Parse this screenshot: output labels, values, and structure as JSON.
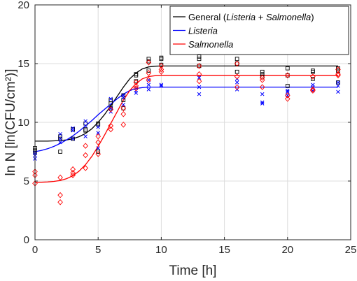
{
  "chart_data": {
    "type": "scatter",
    "xlabel": "Time [h]",
    "ylabel": "ln N [ln(CFU/cm²)]",
    "xlim": [
      0,
      25
    ],
    "ylim": [
      0,
      20
    ],
    "xticks": [
      0,
      5,
      10,
      15,
      20,
      25
    ],
    "yticks": [
      0,
      5,
      10,
      15,
      20
    ],
    "grid": true,
    "legend_position": "top-right",
    "legend": [
      {
        "parts": [
          {
            "text": "General (",
            "italic": false
          },
          {
            "text": "Listeria",
            "italic": true
          },
          {
            "text": " + ",
            "italic": false
          },
          {
            "text": "Salmonella",
            "italic": true
          },
          {
            "text": ")",
            "italic": false
          }
        ],
        "color": "#000000"
      },
      {
        "parts": [
          {
            "text": "Listeria",
            "italic": true
          }
        ],
        "color": "#0000ff"
      },
      {
        "parts": [
          {
            "text": "Salmonella",
            "italic": true
          }
        ],
        "color": "#ff0000"
      }
    ],
    "curves": [
      {
        "series": "General",
        "color": "#000000",
        "x": [
          0,
          0.5,
          1,
          1.5,
          2,
          2.5,
          3,
          3.5,
          4,
          4.5,
          5,
          5.5,
          6,
          6.5,
          7,
          7.5,
          8,
          8.5,
          9,
          9.5,
          10,
          11,
          12,
          14,
          16,
          18,
          20,
          22,
          24
        ],
        "y": [
          8.4,
          8.4,
          8.4,
          8.42,
          8.45,
          8.5,
          8.6,
          8.78,
          9.05,
          9.45,
          10.0,
          10.65,
          11.4,
          12.2,
          13.0,
          13.7,
          14.2,
          14.55,
          14.72,
          14.78,
          14.8,
          14.8,
          14.8,
          14.8,
          14.8,
          14.8,
          14.8,
          14.8,
          14.8
        ]
      },
      {
        "series": "Listeria",
        "color": "#0000ff",
        "x": [
          0,
          0.5,
          1,
          1.5,
          2,
          2.5,
          3,
          3.5,
          4,
          4.5,
          5,
          5.5,
          6,
          6.5,
          7,
          7.5,
          8,
          8.5,
          9,
          9.5,
          10,
          11,
          12,
          14,
          16,
          18,
          20,
          22,
          24
        ],
        "y": [
          7.5,
          7.6,
          7.75,
          7.95,
          8.2,
          8.5,
          8.85,
          9.25,
          9.7,
          10.15,
          10.65,
          11.1,
          11.55,
          12.0,
          12.4,
          12.7,
          12.88,
          12.96,
          13.0,
          13.0,
          13.0,
          13.0,
          13.0,
          13.0,
          13.0,
          13.0,
          13.0,
          13.0,
          13.0
        ]
      },
      {
        "series": "Salmonella",
        "color": "#ff0000",
        "x": [
          0,
          0.5,
          1,
          1.5,
          2,
          2.5,
          3,
          3.5,
          4,
          4.5,
          5,
          5.5,
          6,
          6.5,
          7,
          7.5,
          8,
          8.5,
          9,
          9.5,
          10,
          11,
          12,
          14,
          16,
          18,
          20,
          22,
          24
        ],
        "y": [
          4.9,
          4.9,
          4.92,
          4.97,
          5.05,
          5.2,
          5.45,
          5.85,
          6.4,
          7.1,
          7.95,
          8.9,
          9.9,
          10.9,
          11.9,
          12.7,
          13.3,
          13.7,
          13.9,
          13.97,
          14.0,
          14.0,
          14.0,
          14.0,
          14.0,
          14.0,
          14.0,
          14.0,
          14.0
        ]
      }
    ],
    "series": [
      {
        "series": "General",
        "marker": "square",
        "color": "#000000",
        "points": [
          [
            0,
            7.8
          ],
          [
            0,
            7.6
          ],
          [
            0,
            7.4
          ],
          [
            2,
            8.8
          ],
          [
            2,
            8.6
          ],
          [
            2,
            7.5
          ],
          [
            3,
            9.4
          ],
          [
            3,
            9.4
          ],
          [
            3,
            8.6
          ],
          [
            4,
            9.9
          ],
          [
            4,
            9.4
          ],
          [
            4,
            9.3
          ],
          [
            5,
            9.9
          ],
          [
            5,
            9.8
          ],
          [
            5,
            7.5
          ],
          [
            6,
            11.9
          ],
          [
            6,
            11.6
          ],
          [
            6,
            11.2
          ],
          [
            7,
            12.3
          ],
          [
            7,
            11.9
          ],
          [
            7,
            11.2
          ],
          [
            8,
            14.1
          ],
          [
            8,
            14.0
          ],
          [
            8,
            13.5
          ],
          [
            9,
            15.4
          ],
          [
            9,
            15.2
          ],
          [
            9,
            14.4
          ],
          [
            10,
            15.5
          ],
          [
            10,
            15.4
          ],
          [
            10,
            14.9
          ],
          [
            13,
            15.6
          ],
          [
            13,
            15.4
          ],
          [
            13,
            14.8
          ],
          [
            16,
            15.4
          ],
          [
            16,
            15.0
          ],
          [
            16,
            14.3
          ],
          [
            18,
            14.3
          ],
          [
            18,
            14.1
          ],
          [
            18,
            13.9
          ],
          [
            20,
            14.6
          ],
          [
            20,
            14.0
          ],
          [
            20,
            13.1
          ],
          [
            22,
            14.4
          ],
          [
            22,
            14.3
          ],
          [
            22,
            13.7
          ],
          [
            24,
            14.6
          ],
          [
            24,
            14.4
          ],
          [
            24,
            13.4
          ]
        ]
      },
      {
        "series": "Listeria",
        "marker": "x",
        "color": "#0000ff",
        "points": [
          [
            0,
            7.4
          ],
          [
            0,
            7.2
          ],
          [
            0,
            6.9
          ],
          [
            2,
            9.0
          ],
          [
            2,
            8.6
          ],
          [
            2,
            8.3
          ],
          [
            3,
            9.5
          ],
          [
            3,
            9.3
          ],
          [
            3,
            8.6
          ],
          [
            4,
            10.1
          ],
          [
            4,
            9.7
          ],
          [
            4,
            8.8
          ],
          [
            5,
            9.6
          ],
          [
            5,
            9.1
          ],
          [
            5,
            7.8
          ],
          [
            6,
            12.0
          ],
          [
            6,
            11.2
          ],
          [
            6,
            10.9
          ],
          [
            7,
            12.3
          ],
          [
            7,
            12.1
          ],
          [
            7,
            11.5
          ],
          [
            8,
            12.9
          ],
          [
            8,
            12.7
          ],
          [
            8,
            12.5
          ],
          [
            9,
            13.6
          ],
          [
            9,
            13.2
          ],
          [
            9,
            12.8
          ],
          [
            10,
            13.2
          ],
          [
            10,
            13.1
          ],
          [
            13,
            13.8
          ],
          [
            13,
            13.0
          ],
          [
            13,
            12.4
          ],
          [
            16,
            13.7
          ],
          [
            16,
            13.4
          ],
          [
            16,
            12.8
          ],
          [
            18,
            12.4
          ],
          [
            18,
            11.7
          ],
          [
            18,
            11.6
          ],
          [
            20,
            12.7
          ],
          [
            20,
            12.6
          ],
          [
            20,
            12.3
          ],
          [
            22,
            13.2
          ],
          [
            22,
            13.0
          ],
          [
            22,
            12.7
          ],
          [
            24,
            13.4
          ],
          [
            24,
            13.1
          ],
          [
            24,
            12.6
          ]
        ]
      },
      {
        "series": "Salmonella",
        "marker": "diamond",
        "color": "#ff0000",
        "points": [
          [
            0,
            5.8
          ],
          [
            0,
            5.5
          ],
          [
            0,
            4.8
          ],
          [
            2,
            5.3
          ],
          [
            2,
            3.8
          ],
          [
            2,
            3.2
          ],
          [
            3,
            6.0
          ],
          [
            3,
            5.7
          ],
          [
            3,
            5.5
          ],
          [
            4,
            8.0
          ],
          [
            4,
            7.2
          ],
          [
            4,
            6.1
          ],
          [
            5,
            8.8
          ],
          [
            5,
            8.3
          ],
          [
            5,
            7.3
          ],
          [
            6,
            11.1
          ],
          [
            6,
            9.7
          ],
          [
            6,
            9.4
          ],
          [
            7,
            11.2
          ],
          [
            7,
            10.7
          ],
          [
            7,
            9.8
          ],
          [
            8,
            13.4
          ],
          [
            8,
            13.1
          ],
          [
            8,
            12.9
          ],
          [
            9,
            15.1
          ],
          [
            9,
            14.2
          ],
          [
            9,
            13.6
          ],
          [
            10,
            14.8
          ],
          [
            10,
            14.5
          ],
          [
            10,
            14.3
          ],
          [
            13,
            14.8
          ],
          [
            13,
            14.1
          ],
          [
            13,
            13.5
          ],
          [
            16,
            15.0
          ],
          [
            16,
            13.9
          ],
          [
            16,
            13.0
          ],
          [
            18,
            13.8
          ],
          [
            18,
            13.6
          ],
          [
            18,
            13.0
          ],
          [
            20,
            14.0
          ],
          [
            20,
            12.3
          ],
          [
            20,
            12.0
          ],
          [
            22,
            13.9
          ],
          [
            22,
            12.8
          ],
          [
            22,
            12.7
          ],
          [
            24,
            14.5
          ],
          [
            24,
            14.1
          ],
          [
            24,
            14.0
          ]
        ]
      }
    ]
  }
}
